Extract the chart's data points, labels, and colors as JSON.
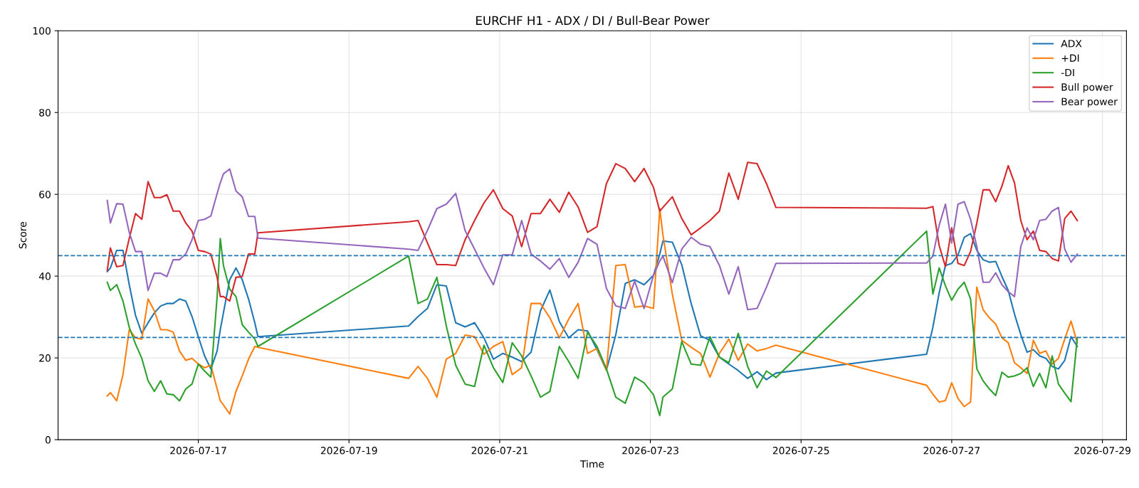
{
  "chart_data": {
    "type": "line",
    "title": "EURCHF H1 - ADX / DI / Bull-Bear Power",
    "xlabel": "Time",
    "ylabel": "Score",
    "x": [
      "2026-07-15T19:00",
      "2026-07-15T20:00",
      "2026-07-15T22:00",
      "2026-07-16T00:00",
      "2026-07-16T02:00",
      "2026-07-16T04:00",
      "2026-07-16T06:00",
      "2026-07-16T08:00",
      "2026-07-16T10:00",
      "2026-07-16T12:00",
      "2026-07-16T14:00",
      "2026-07-16T16:00",
      "2026-07-16T18:00",
      "2026-07-16T20:00",
      "2026-07-16T22:00",
      "2026-07-17T00:00",
      "2026-07-17T02:00",
      "2026-07-17T04:00",
      "2026-07-17T06:00",
      "2026-07-17T07:00",
      "2026-07-17T08:00",
      "2026-07-17T10:00",
      "2026-07-17T12:00",
      "2026-07-17T14:00",
      "2026-07-17T16:00",
      "2026-07-17T18:00",
      "2026-07-17T19:00",
      "2026-07-19T19:00",
      "2026-07-19T22:00",
      "2026-07-20T01:00",
      "2026-07-20T04:00",
      "2026-07-20T07:00",
      "2026-07-20T10:00",
      "2026-07-20T13:00",
      "2026-07-20T16:00",
      "2026-07-20T19:00",
      "2026-07-20T22:00",
      "2026-07-21T01:00",
      "2026-07-21T04:00",
      "2026-07-21T07:00",
      "2026-07-21T10:00",
      "2026-07-21T13:00",
      "2026-07-21T16:00",
      "2026-07-21T19:00",
      "2026-07-21T22:00",
      "2026-07-22T01:00",
      "2026-07-22T04:00",
      "2026-07-22T07:00",
      "2026-07-22T10:00",
      "2026-07-22T13:00",
      "2026-07-22T16:00",
      "2026-07-22T19:00",
      "2026-07-22T22:00",
      "2026-07-23T01:00",
      "2026-07-23T03:00",
      "2026-07-23T04:00",
      "2026-07-23T07:00",
      "2026-07-23T10:00",
      "2026-07-23T13:00",
      "2026-07-23T16:00",
      "2026-07-23T19:00",
      "2026-07-23T22:00",
      "2026-07-24T01:00",
      "2026-07-24T04:00",
      "2026-07-24T07:00",
      "2026-07-24T10:00",
      "2026-07-24T13:00",
      "2026-07-24T16:00",
      "2026-07-26T16:00",
      "2026-07-26T18:00",
      "2026-07-26T20:00",
      "2026-07-26T22:00",
      "2026-07-27T00:00",
      "2026-07-27T02:00",
      "2026-07-27T04:00",
      "2026-07-27T06:00",
      "2026-07-27T08:00",
      "2026-07-27T10:00",
      "2026-07-27T12:00",
      "2026-07-27T14:00",
      "2026-07-27T16:00",
      "2026-07-27T18:00",
      "2026-07-27T20:00",
      "2026-07-27T22:00",
      "2026-07-28T00:00",
      "2026-07-28T02:00",
      "2026-07-28T04:00",
      "2026-07-28T06:00",
      "2026-07-28T08:00",
      "2026-07-28T10:00",
      "2026-07-28T12:00",
      "2026-07-28T14:00",
      "2026-07-28T16:00"
    ],
    "series": [
      {
        "name": "ADX",
        "color": "#1f77b4",
        "values": [
          41.1,
          42.0,
          46.3,
          46.3,
          37.9,
          30.4,
          26.0,
          28.6,
          31.0,
          32.7,
          33.3,
          33.3,
          34.4,
          33.9,
          30.1,
          25.2,
          20.5,
          17.3,
          21.7,
          26.9,
          31.0,
          39.1,
          42.0,
          39.1,
          34.4,
          28.6,
          25.2,
          27.8,
          30.1,
          32.1,
          37.9,
          37.6,
          28.6,
          27.6,
          28.6,
          24.9,
          19.7,
          21.1,
          20.2,
          19.1,
          21.4,
          31.5,
          36.6,
          28.9,
          24.9,
          26.9,
          26.6,
          22.0,
          17.0,
          25.7,
          38.2,
          39.1,
          37.9,
          40.2,
          45.4,
          48.6,
          48.3,
          42.8,
          33.3,
          25.4,
          24.3,
          20.2,
          18.5,
          16.9,
          15.0,
          16.6,
          14.7,
          16.3,
          20.9,
          27.5,
          35.9,
          42.6,
          43.1,
          45.2,
          49.5,
          50.4,
          46.3,
          44.0,
          43.4,
          43.6,
          39.9,
          36.5,
          30.7,
          25.7,
          21.4,
          22.0,
          20.5,
          19.9,
          17.9,
          17.3,
          19.4,
          25.2,
          22.8
        ]
      },
      {
        "name": "+DI",
        "color": "#ff7f0e",
        "values": [
          10.7,
          11.5,
          9.5,
          15.9,
          26.9,
          24.9,
          24.6,
          34.4,
          31.5,
          26.9,
          26.9,
          26.3,
          21.7,
          19.4,
          19.9,
          18.5,
          17.6,
          18.2,
          12.4,
          9.5,
          8.5,
          6.3,
          11.8,
          15.6,
          19.7,
          22.8,
          22.6,
          15.0,
          17.9,
          15.0,
          10.4,
          19.7,
          21.1,
          25.6,
          25.2,
          20.9,
          22.8,
          24.0,
          15.9,
          17.6,
          33.3,
          33.3,
          29.8,
          24.9,
          29.5,
          33.3,
          21.1,
          22.3,
          17.0,
          42.6,
          42.8,
          32.4,
          32.7,
          32.1,
          56.5,
          50.1,
          35.6,
          24.3,
          22.6,
          21.1,
          15.3,
          21.1,
          24.6,
          19.4,
          23.4,
          21.7,
          22.3,
          23.1,
          13.3,
          11.1,
          9.2,
          9.6,
          13.9,
          10.1,
          8.1,
          9.2,
          37.3,
          31.8,
          29.8,
          28.3,
          24.9,
          23.7,
          18.8,
          17.6,
          16.2,
          24.3,
          21.1,
          21.7,
          18.5,
          19.9,
          24.6,
          29.0,
          23.7
        ]
      },
      {
        "name": "-DI",
        "color": "#2ca02c",
        "values": [
          38.5,
          36.5,
          37.9,
          33.9,
          27.5,
          23.4,
          19.9,
          14.4,
          11.8,
          14.4,
          11.2,
          11.0,
          9.5,
          12.4,
          13.6,
          18.5,
          16.8,
          15.3,
          35.0,
          49.2,
          42.6,
          36.8,
          35.0,
          28.1,
          26.3,
          24.6,
          22.8,
          44.9,
          33.3,
          34.4,
          39.7,
          27.8,
          18.2,
          13.6,
          13.0,
          23.1,
          17.6,
          14.0,
          23.7,
          20.5,
          15.6,
          10.4,
          11.8,
          22.8,
          19.1,
          15.0,
          26.3,
          22.8,
          17.3,
          10.4,
          8.9,
          15.3,
          13.9,
          11.0,
          5.9,
          10.4,
          12.4,
          24.0,
          18.5,
          18.2,
          25.2,
          20.2,
          18.8,
          26.0,
          17.9,
          12.7,
          16.8,
          15.2,
          51.0,
          35.6,
          42.0,
          37.6,
          34.1,
          36.8,
          38.5,
          34.4,
          17.3,
          14.4,
          12.4,
          10.8,
          16.5,
          15.3,
          15.6,
          16.2,
          17.6,
          13.0,
          16.2,
          12.7,
          20.5,
          13.6,
          11.4,
          9.3,
          24.9
        ]
      },
      {
        "name": "Bull power",
        "color": "#d62728",
        "values": [
          41.4,
          46.9,
          42.3,
          42.6,
          49.2,
          55.3,
          53.9,
          63.1,
          59.2,
          59.2,
          59.9,
          55.9,
          55.9,
          53.0,
          51.0,
          46.3,
          46.0,
          45.4,
          39.7,
          35.0,
          35.0,
          33.9,
          39.7,
          39.9,
          45.4,
          45.4,
          50.6,
          53.3,
          53.6,
          48.1,
          42.8,
          42.8,
          42.6,
          48.9,
          53.6,
          57.9,
          61.1,
          56.5,
          54.7,
          47.2,
          55.3,
          55.3,
          58.8,
          55.6,
          60.5,
          56.9,
          50.7,
          52.1,
          62.6,
          67.5,
          66.3,
          63.1,
          66.3,
          61.7,
          55.9,
          56.8,
          59.4,
          54.1,
          50.1,
          51.8,
          53.6,
          55.9,
          65.2,
          58.8,
          67.8,
          67.5,
          62.6,
          56.8,
          56.6,
          57.0,
          47.5,
          42.3,
          51.8,
          43.1,
          42.6,
          46.0,
          53.0,
          61.1,
          61.1,
          58.2,
          62.0,
          67.0,
          62.8,
          53.6,
          48.9,
          51.0,
          46.3,
          46.0,
          44.3,
          43.7,
          54.1,
          55.9,
          53.6
        ]
      },
      {
        "name": "Bear power",
        "color": "#9467bd",
        "values": [
          58.5,
          53.0,
          57.7,
          57.6,
          50.7,
          46.0,
          46.0,
          36.5,
          40.7,
          40.7,
          39.9,
          44.0,
          44.0,
          45.4,
          48.9,
          53.6,
          53.9,
          54.7,
          60.2,
          62.8,
          65.0,
          66.2,
          60.8,
          59.4,
          54.6,
          54.6,
          49.3,
          46.6,
          46.3,
          51.2,
          56.5,
          57.6,
          60.2,
          51.1,
          46.6,
          42.0,
          37.9,
          45.2,
          45.2,
          53.6,
          45.4,
          43.7,
          41.7,
          44.3,
          39.7,
          43.4,
          49.2,
          47.8,
          37.0,
          32.7,
          32.1,
          38.8,
          32.1,
          40.2,
          43.7,
          44.9,
          38.4,
          46.6,
          49.5,
          47.8,
          47.2,
          42.6,
          35.6,
          42.3,
          31.8,
          32.1,
          37.3,
          43.1,
          43.2,
          44.9,
          52.4,
          57.6,
          48.1,
          57.6,
          58.2,
          53.9,
          47.2,
          38.5,
          38.5,
          40.8,
          37.9,
          36.2,
          35.0,
          47.2,
          51.8,
          48.9,
          53.6,
          53.9,
          55.9,
          56.8,
          46.6,
          43.4,
          45.4
        ]
      }
    ],
    "ref_lines": [
      {
        "axis": "y",
        "value": 25,
        "color": "#1f77b4",
        "line_style": "dashed"
      },
      {
        "axis": "y",
        "value": 45,
        "color": "#1f77b4",
        "line_style": "dashed"
      }
    ],
    "xlim": [
      "2026-07-15T03:20",
      "2026-07-29T07:40"
    ],
    "xticks": [
      "2026-07-17",
      "2026-07-19",
      "2026-07-21",
      "2026-07-23",
      "2026-07-25",
      "2026-07-27",
      "2026-07-29"
    ],
    "ylim": [
      0,
      100
    ],
    "yticks": [
      0,
      20,
      40,
      60,
      80,
      100
    ],
    "grid": true,
    "legend": "top right",
    "marker": "none",
    "line_style": "solid"
  }
}
